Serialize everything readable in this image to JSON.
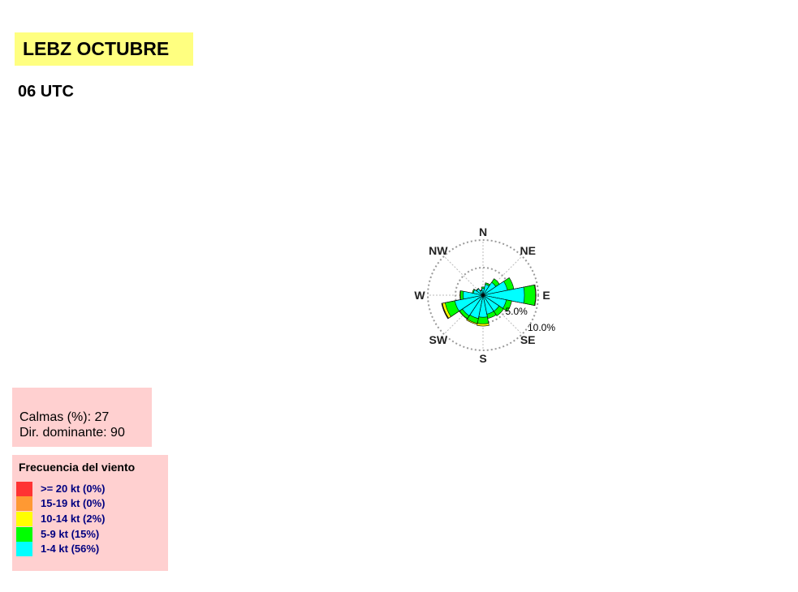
{
  "header": {
    "title": "LEBZ OCTUBRE",
    "subtitle": "06 UTC"
  },
  "stats": {
    "calms_line": "Calmas (%): 27",
    "dominant_line": "Dir. dominante:  90"
  },
  "legend": {
    "title": "Frecuencia del viento",
    "items": [
      {
        "label": ">= 20 kt (0%)",
        "color": "#ff3333"
      },
      {
        "label": "15-19 kt (0%)",
        "color": "#ff9933"
      },
      {
        "label": "10-14 kt (2%)",
        "color": "#ffff00"
      },
      {
        "label": "5-9 kt (15%)",
        "color": "#00ff00"
      },
      {
        "label": "1-4 kt (56%)",
        "color": "#00ffff"
      }
    ]
  },
  "chart_data": {
    "type": "wind-rose",
    "radial_unit": "%",
    "rings": [
      {
        "value": 5,
        "label": "5.0%"
      },
      {
        "value": 10,
        "label": "10.0%"
      }
    ],
    "compass_labels": [
      {
        "label": "N",
        "direction": 0
      },
      {
        "label": "NE",
        "direction": 45
      },
      {
        "label": "E",
        "direction": 90
      },
      {
        "label": "SE",
        "direction": 135
      },
      {
        "label": "S",
        "direction": 180
      },
      {
        "label": "SW",
        "direction": 225
      },
      {
        "label": "W",
        "direction": 270
      },
      {
        "label": "NW",
        "direction": 315
      }
    ],
    "sectors": [
      0,
      22.5,
      45,
      67.5,
      90,
      112.5,
      135,
      157.5,
      180,
      202.5,
      225,
      247.5,
      270,
      292.5,
      315,
      337.5
    ],
    "series": [
      {
        "name": "1-4 kt",
        "color": "#00ffff",
        "values": [
          1.2,
          2.0,
          2.8,
          4.5,
          7.5,
          4.3,
          3.5,
          3.5,
          4.0,
          4.3,
          4.5,
          5.2,
          3.6,
          1.8,
          1.4,
          0.9
        ]
      },
      {
        "name": "5-9 kt",
        "color": "#00ff00",
        "values": [
          0.3,
          0.3,
          0.8,
          1.2,
          2.0,
          1.0,
          1.0,
          0.8,
          1.2,
          0.9,
          0.6,
          1.8,
          0.5,
          0.2,
          0.1,
          0.1
        ]
      },
      {
        "name": "10-14 kt",
        "color": "#ffff00",
        "values": [
          0,
          0,
          0,
          0,
          0.1,
          0,
          0,
          0,
          0.4,
          0.2,
          0.1,
          0.5,
          0.1,
          0,
          0,
          0
        ]
      },
      {
        "name": "15-19 kt",
        "color": "#ff9933",
        "values": [
          0,
          0,
          0,
          0,
          0,
          0,
          0,
          0,
          0,
          0,
          0,
          0.1,
          0,
          0,
          0,
          0
        ]
      },
      {
        "name": ">= 20 kt",
        "color": "#ff3333",
        "values": [
          0,
          0,
          0,
          0,
          0,
          0,
          0,
          0,
          0,
          0,
          0,
          0.05,
          0,
          0,
          0,
          0
        ]
      }
    ]
  }
}
